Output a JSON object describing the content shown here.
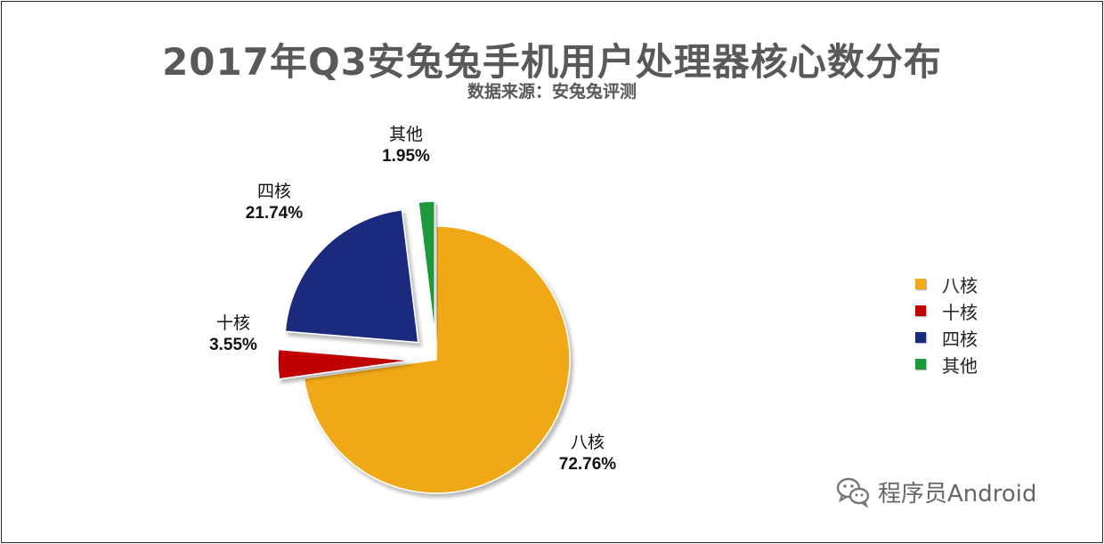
{
  "chart_data": {
    "type": "pie",
    "title": "2017年Q3安兔兔手机用户处理器核心数分布",
    "subtitle": "数据来源：安兔兔评测",
    "slices": [
      {
        "label": "八核",
        "value": 72.76,
        "value_text": "72.76%",
        "color": "#F0A918",
        "explode": false
      },
      {
        "label": "十核",
        "value": 3.55,
        "value_text": "3.55%",
        "color": "#C00000",
        "explode": true
      },
      {
        "label": "四核",
        "value": 21.74,
        "value_text": "21.74%",
        "color": "#1B2B7E",
        "explode": true
      },
      {
        "label": "其他",
        "value": 1.95,
        "value_text": "1.95%",
        "color": "#1B9A3A",
        "explode": true
      }
    ],
    "legend": {
      "placement": "right",
      "entries": [
        "八核",
        "十核",
        "四核",
        "其他"
      ]
    }
  },
  "watermark": {
    "text": "程序员Android",
    "icon": "wechat-icon"
  }
}
